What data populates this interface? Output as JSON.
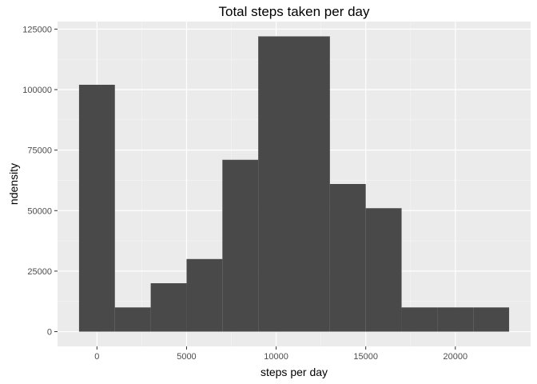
{
  "chart_data": {
    "type": "bar",
    "title": "Total steps taken per day",
    "xlabel": "steps per day",
    "ylabel": "ndensity",
    "bins": [
      {
        "x0": -1000,
        "x1": 1000,
        "count": 102000
      },
      {
        "x0": 1000,
        "x1": 3000,
        "count": 10000
      },
      {
        "x0": 3000,
        "x1": 5000,
        "count": 20000
      },
      {
        "x0": 5000,
        "x1": 7000,
        "count": 30000
      },
      {
        "x0": 7000,
        "x1": 9000,
        "count": 71000
      },
      {
        "x0": 9000,
        "x1": 11000,
        "count": 122000
      },
      {
        "x0": 11000,
        "x1": 13000,
        "count": 122000
      },
      {
        "x0": 13000,
        "x1": 15000,
        "count": 61000
      },
      {
        "x0": 15000,
        "x1": 17000,
        "count": 51000
      },
      {
        "x0": 17000,
        "x1": 19000,
        "count": 10000
      },
      {
        "x0": 19000,
        "x1": 21000,
        "count": 10000
      },
      {
        "x0": 21000,
        "x1": 23000,
        "count": 10000
      }
    ],
    "xlim": [
      -2200,
      24200
    ],
    "ylim": [
      -6100,
      128100
    ],
    "x_ticks": [
      0,
      5000,
      10000,
      15000,
      20000
    ],
    "x_tick_labels": [
      "0",
      "5000",
      "10000",
      "15000",
      "20000"
    ],
    "y_ticks": [
      0,
      25000,
      50000,
      75000,
      100000,
      125000
    ],
    "y_tick_labels": [
      "0",
      "25000",
      "50000",
      "75000",
      "100000",
      "125000"
    ],
    "grid": true,
    "legend": "none",
    "colors": {
      "panel_background": "#ebebeb",
      "grid_major": "#ffffff",
      "grid_minor": "#f5f5f5",
      "bar_fill": "#494949",
      "tick_label": "#4d4d4d",
      "tick_mark": "#333333"
    }
  }
}
